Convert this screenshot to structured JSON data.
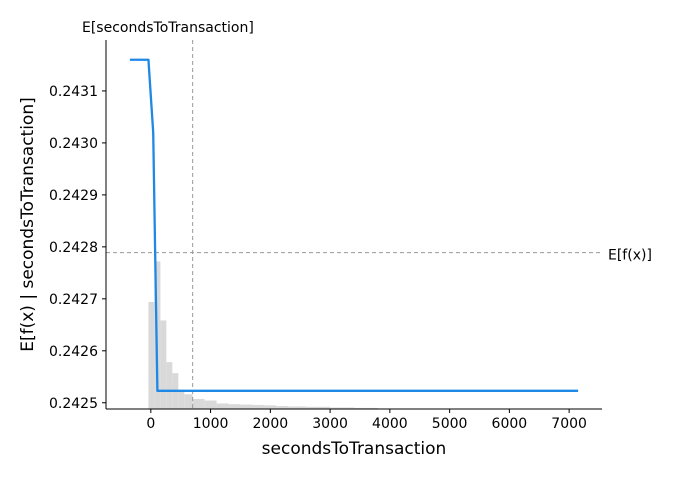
{
  "chart_data": {
    "type": "line",
    "title": "",
    "xlabel": "secondsToTransaction",
    "ylabel": "E[f(x) | secondsToTransaction]",
    "xlim": [
      -750,
      7550
    ],
    "ylim": [
      0.242488,
      0.243198
    ],
    "x_ticks": [
      0,
      1000,
      2000,
      3000,
      4000,
      5000,
      6000,
      7000
    ],
    "y_ticks": [
      0.2425,
      0.2426,
      0.2427,
      0.2428,
      0.2429,
      0.243,
      0.2431
    ],
    "y_tick_labels": [
      "0.2425",
      "0.2426",
      "0.2427",
      "0.2428",
      "0.2429",
      "0.2430",
      "0.2431"
    ],
    "grid": false,
    "series": [
      {
        "color": "#1e88e5",
        "x": [
          -350,
          -40,
          40,
          110,
          7150
        ],
        "y": [
          0.24316,
          0.24316,
          0.24302,
          0.242523,
          0.242523
        ]
      }
    ],
    "reference_lines": {
      "horizontal": {
        "y": 0.242789,
        "label": "E[f(x)]"
      },
      "vertical": {
        "x": 700,
        "label": "E[secondsToTransaction]"
      }
    },
    "histogram": {
      "color": "#d9d9d9",
      "bin_edges": [
        -40,
        60,
        160,
        260,
        360,
        460,
        560,
        700,
        900,
        1100,
        1300,
        1500,
        1700,
        1900,
        2100,
        2300,
        2600,
        3000,
        3400,
        3800
      ],
      "relative_heights": [
        0.29,
        0.4,
        0.24,
        0.127,
        0.097,
        0.05,
        0.04,
        0.027,
        0.023,
        0.015,
        0.013,
        0.012,
        0.011,
        0.01,
        0.008,
        0.007,
        0.006,
        0.004,
        0.003
      ]
    }
  }
}
